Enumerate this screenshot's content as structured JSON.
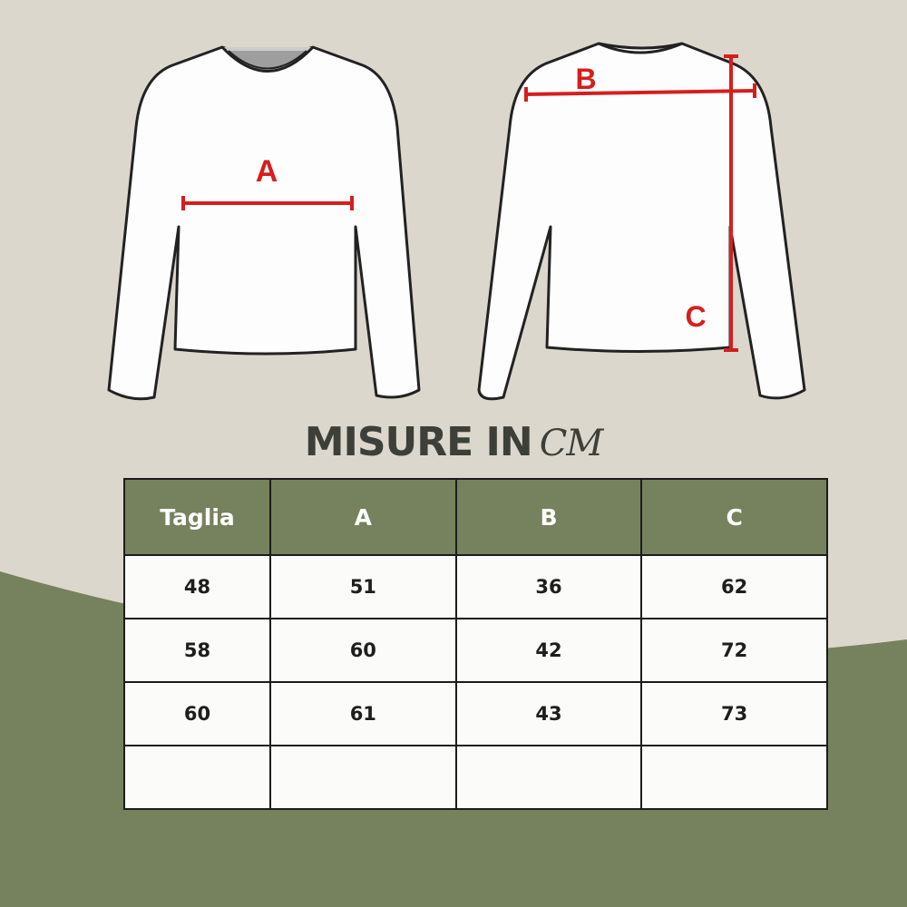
{
  "colors": {
    "background": "#dcd7cd",
    "accent_green": "#76815e",
    "measure_red": "#d41f1f"
  },
  "diagram": {
    "front_label": "A",
    "back_labels": [
      "B",
      "C"
    ]
  },
  "title": {
    "main": "MISURE IN",
    "unit": "CM"
  },
  "table": {
    "headers": [
      "Taglia",
      "A",
      "B",
      "C"
    ],
    "rows": [
      [
        "48",
        "51",
        "36",
        "62"
      ],
      [
        "58",
        "60",
        "42",
        "72"
      ],
      [
        "60",
        "61",
        "43",
        "73"
      ],
      [
        "",
        "",
        "",
        ""
      ]
    ]
  }
}
